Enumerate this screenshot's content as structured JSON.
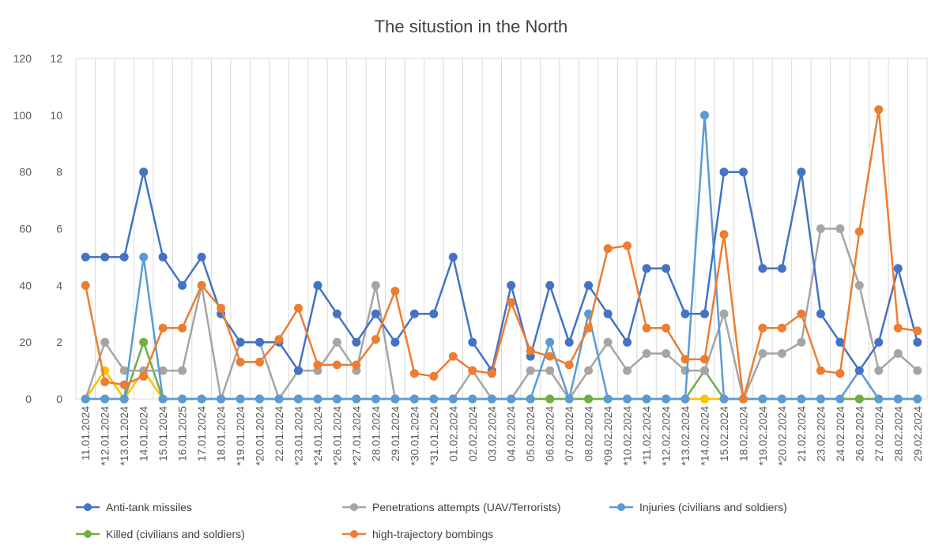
{
  "chart_data": {
    "type": "line",
    "title": "The situstion in the North",
    "yaxis_left": {
      "ticks": [
        "0",
        "20",
        "40",
        "60",
        "80",
        "100",
        "120"
      ],
      "range": [
        0,
        120
      ]
    },
    "yaxis_right": {
      "ticks": [
        "0",
        "2",
        "4",
        "6",
        "8",
        "10",
        "12"
      ],
      "range": [
        0,
        12
      ]
    },
    "grid": "vertical",
    "legend_position": "bottom",
    "categories": [
      "11.01.2024",
      "*12.01.2024",
      "*13.01.2024",
      "14.01.2024",
      "15.01.2024",
      "16.01.2025",
      "17.01.2024",
      "18.01.2024",
      "*19.01.2024",
      "*20.01.2024",
      "22.01.2024",
      "*23.01.2024",
      "*24.01.2024",
      "*26.01.2024",
      "*27.01.2024",
      "28.01.2024",
      "29.01.2024",
      "*30.01.2024",
      "*31.01.2024",
      "01.02.2024",
      "02.02.2024",
      "03.02.2024",
      "04.02.2024",
      "05.02.2024",
      "06.02.2024",
      "07.02.2024",
      "08.02.2024",
      "*09.02.2024",
      "*10.02.2024",
      "*11.02.2024",
      "*12.02.2024",
      "*13.02.2024",
      "*14.02.2024",
      "15.02.2024",
      "18.02.2024",
      "*19.02.2024",
      "*20.02.2024",
      "21.02.2024",
      "23.02.2024",
      "24.02.2024",
      "26.02.2024",
      "27.02.2024",
      "28.02.2024",
      "29.02.2024"
    ],
    "series": [
      {
        "name": "Anti-tank missiles",
        "axis": "right",
        "color": "#4472C4",
        "legend": true,
        "values": [
          5,
          5,
          5,
          8,
          5,
          4,
          5,
          3,
          2,
          2,
          2,
          1,
          4,
          3,
          2,
          3,
          2,
          3,
          3,
          5,
          2,
          1,
          4,
          1.5,
          4,
          2,
          4,
          3,
          2,
          4.6,
          4.6,
          3,
          3,
          8,
          8,
          4.6,
          4.6,
          8,
          3,
          2,
          1,
          2,
          4.6,
          2
        ]
      },
      {
        "name": "Penetrations attempts (UAV/Terrorists)",
        "axis": "right",
        "color": "#A5A5A5",
        "legend": true,
        "values": [
          0,
          2,
          1,
          1,
          1,
          1,
          4,
          0,
          2,
          2,
          0,
          1,
          1,
          2,
          1,
          4,
          0,
          0,
          0,
          0,
          1,
          0,
          0,
          1,
          1,
          0,
          1,
          2,
          1,
          1.6,
          1.6,
          1,
          1,
          3,
          0,
          1.6,
          1.6,
          2,
          6,
          6,
          4,
          1,
          1.6,
          1
        ]
      },
      {
        "name": "Injuries (civilians and soldiers)",
        "axis": "right",
        "color": "#5B9BD5",
        "legend": true,
        "values": [
          0,
          0,
          0,
          5,
          0,
          0,
          0,
          0,
          0,
          0,
          0,
          0,
          0,
          0,
          0,
          0,
          0,
          0,
          0,
          0,
          0,
          0,
          0,
          0,
          2,
          0,
          3,
          0,
          0,
          0,
          0,
          0,
          10,
          0,
          0,
          0,
          0,
          0,
          0,
          0,
          1,
          0,
          0,
          0
        ]
      },
      {
        "name": "Killed (civilians and soldiers)",
        "axis": "right",
        "color": "#70AD47",
        "legend": true,
        "values": [
          0,
          0,
          0,
          2,
          0,
          0,
          0,
          0,
          0,
          0,
          0,
          0,
          0,
          0,
          0,
          0,
          0,
          0,
          0,
          0,
          0,
          0,
          0,
          0,
          0,
          0,
          0,
          0,
          0,
          0,
          0,
          0,
          1,
          0,
          0,
          0,
          0,
          0,
          0,
          0,
          0,
          0,
          0,
          0
        ]
      },
      {
        "name": "high-trajectory bombings",
        "axis": "left",
        "color": "#ED7D31",
        "legend": true,
        "values": [
          40,
          6,
          5,
          8,
          25,
          25,
          40,
          32,
          13,
          13,
          21,
          32,
          12,
          12,
          12,
          21,
          38,
          9,
          8,
          15,
          10,
          9,
          34,
          17,
          15,
          12,
          25,
          53,
          54,
          25,
          25,
          14,
          14,
          58,
          0,
          25,
          25,
          30,
          10,
          9,
          59,
          102,
          25,
          24
        ]
      },
      {
        "name": "",
        "axis": "right",
        "color": "#FFC000",
        "legend": false,
        "values": [
          0,
          1,
          0,
          1,
          0,
          0,
          0,
          0,
          0,
          0,
          0,
          0,
          0,
          0,
          0,
          0,
          0,
          0,
          0,
          0,
          0,
          0,
          0,
          0,
          0,
          0,
          0,
          0,
          0,
          0,
          0,
          0,
          0,
          0,
          0,
          0,
          0,
          0,
          0,
          0,
          0,
          0,
          0,
          0
        ]
      }
    ]
  }
}
